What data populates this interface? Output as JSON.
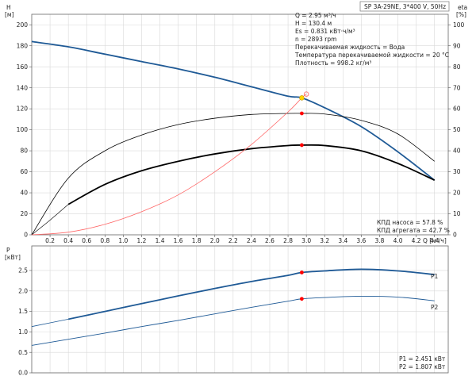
{
  "header": {
    "title": "SP 3A-29NE, 3*400 V, 50Hz"
  },
  "info_lines": [
    "Q = 2.95 м³/ч",
    "H = 130.4 м",
    "Es = 0.831 кВт·ч/м³",
    "n = 2893 rpm",
    "Перекачиваемая жидкость = Вода",
    "Температура перекачиваемой жидкости = 20 °C",
    "Плотность = 998.2 кг/м³"
  ],
  "upper_footer": [
    "КПД насоса = 57.8 %",
    "КПД агрегата = 42.7 %"
  ],
  "lower_footer": [
    "P1 = 2.451 кВт",
    "P2 = 1.807 кВт"
  ],
  "colors": {
    "head_curve": "#1f5a96",
    "efficiency_curve": "#000000",
    "system_curve": "#ff6666",
    "duty_point": "#ff0000",
    "duty_marker_fill": "#ffd400",
    "power_curve": "#1f5a96"
  },
  "chart_data": [
    {
      "type": "line",
      "y_axis_left": {
        "label": [
          "H",
          "[м]"
        ],
        "ylim": [
          0,
          210
        ],
        "ticks": [
          "0",
          "20",
          "40",
          "60",
          "80",
          "100",
          "120",
          "140",
          "160",
          "180",
          "200"
        ]
      },
      "y_axis_right": {
        "label": [
          "eta",
          "[%]"
        ],
        "ylim": [
          0,
          105
        ],
        "ticks": [
          "0",
          "10",
          "20",
          "30",
          "40",
          "50",
          "60",
          "70",
          "80",
          "90",
          "100"
        ]
      },
      "x_axis": {
        "label": "Q [м³/ч]",
        "xlim": [
          0,
          4.55
        ],
        "tick_values": [
          0.2,
          0.4,
          0.6,
          0.8,
          1.0,
          1.2,
          1.4,
          1.6,
          1.8,
          2.0,
          2.2,
          2.4,
          2.6,
          2.8,
          3.0,
          3.2,
          3.4,
          3.6,
          3.8,
          4.0,
          4.2,
          4.4
        ],
        "ticks": [
          "0.2",
          "0.4",
          "0.6",
          "0.8",
          "1.0",
          "1.2",
          "1.4",
          "1.6",
          "1.8",
          "2.0",
          "2.2",
          "2.4",
          "2.6",
          "2.8",
          "3.0",
          "3.2",
          "3.4",
          "3.6",
          "3.8",
          "4.0",
          "4.2",
          "4.4"
        ]
      },
      "grid": true,
      "series": [
        {
          "kind": "head",
          "axis": "left",
          "x": [
            0.0,
            0.4,
            0.8,
            1.2,
            1.6,
            2.0,
            2.4,
            2.8,
            2.95,
            3.2,
            3.6,
            4.0,
            4.4
          ],
          "y": [
            184,
            179,
            172,
            165,
            158,
            150,
            141,
            132,
            130.4,
            121,
            103,
            79,
            52
          ]
        },
        {
          "kind": "head_extrapolated",
          "axis": "left",
          "x": [
            0.0,
            0.4
          ],
          "y": [
            184,
            179
          ]
        },
        {
          "kind": "pump_efficiency",
          "axis": "right",
          "x": [
            0.0,
            0.4,
            0.8,
            1.2,
            1.6,
            2.0,
            2.4,
            2.8,
            2.95,
            3.2,
            3.6,
            4.0,
            4.4
          ],
          "y": [
            0,
            27,
            40,
            47.5,
            52.5,
            55.5,
            57.3,
            57.8,
            57.8,
            57.5,
            54.5,
            48,
            35
          ]
        },
        {
          "kind": "unit_efficiency",
          "axis": "right",
          "x": [
            0.4,
            0.8,
            1.2,
            1.6,
            2.0,
            2.4,
            2.8,
            2.95,
            3.2,
            3.6,
            4.0,
            4.4
          ],
          "y": [
            14.5,
            24,
            30.5,
            35,
            38.5,
            41,
            42.5,
            42.7,
            42.5,
            40,
            34,
            26
          ]
        },
        {
          "kind": "unit_efficiency_extrapolated",
          "axis": "right",
          "x": [
            0.0,
            0.2,
            0.4
          ],
          "y": [
            0,
            7,
            14.5
          ]
        },
        {
          "kind": "system_curve",
          "axis": "left",
          "x": [
            0.0,
            0.4,
            0.8,
            1.2,
            1.6,
            2.0,
            2.4,
            2.8,
            2.95,
            3.0
          ],
          "y": [
            0,
            2.5,
            10,
            22,
            38,
            60,
            86,
            117,
            130.4,
            134
          ]
        }
      ],
      "duty_points": [
        {
          "x": 2.95,
          "y": 130.4,
          "axis": "left",
          "marker": "diamond"
        },
        {
          "x": 2.95,
          "y": 57.8,
          "axis": "right",
          "marker": "dot"
        },
        {
          "x": 2.95,
          "y": 42.7,
          "axis": "right",
          "marker": "dot"
        }
      ],
      "open_marker": {
        "x": 3.0,
        "y": 134,
        "axis": "left"
      }
    },
    {
      "type": "line",
      "y_axis_left": {
        "label": [
          "P",
          "[кВт]"
        ],
        "ylim": [
          0.0,
          3.1
        ],
        "ticks": [
          "0.0",
          "0.5",
          "1.0",
          "1.5",
          "2.0",
          "2.5"
        ]
      },
      "x_axis": {
        "xlim": [
          0,
          4.55
        ]
      },
      "grid": true,
      "series": [
        {
          "name": "P1",
          "x": [
            0.4,
            0.8,
            1.2,
            1.6,
            2.0,
            2.4,
            2.8,
            2.95,
            3.2,
            3.6,
            4.0,
            4.4
          ],
          "y": [
            1.31,
            1.5,
            1.69,
            1.88,
            2.06,
            2.23,
            2.38,
            2.451,
            2.49,
            2.53,
            2.49,
            2.4
          ]
        },
        {
          "name": "P1_extrapolated",
          "x": [
            0.0,
            0.4
          ],
          "y": [
            1.13,
            1.31
          ]
        },
        {
          "name": "P2",
          "x": [
            0.0,
            0.4,
            0.8,
            1.2,
            1.6,
            2.0,
            2.4,
            2.8,
            2.95,
            3.2,
            3.6,
            4.0,
            4.4
          ],
          "y": [
            0.67,
            0.82,
            0.97,
            1.13,
            1.28,
            1.44,
            1.6,
            1.75,
            1.807,
            1.84,
            1.87,
            1.85,
            1.76
          ]
        }
      ],
      "duty_points": [
        {
          "x": 2.95,
          "y": 2.451
        },
        {
          "x": 2.95,
          "y": 1.807
        }
      ],
      "series_labels": [
        "P1",
        "P2"
      ]
    }
  ]
}
